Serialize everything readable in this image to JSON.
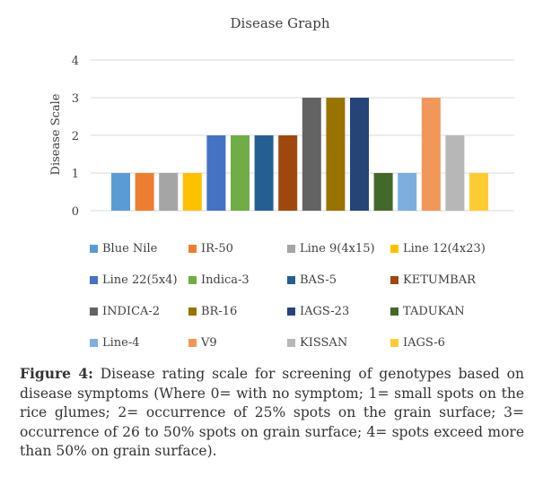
{
  "chart_data": {
    "type": "bar",
    "title": "Disease Graph",
    "xlabel": "",
    "ylabel": "Disease Scale",
    "ylim": [
      0,
      4
    ],
    "yticks": [
      "0",
      "1",
      "2",
      "3",
      "4"
    ],
    "grid": true,
    "legend_position": "bottom",
    "categories": [
      "Blue Nile",
      "IR-50",
      "Line 9(4x15)",
      "Line 12(4x23)",
      "Line 22(5x4)",
      "Indica-3",
      "BAS-5",
      "KETUMBAR",
      "INDICA-2",
      "BR-16",
      "IAGS-23",
      "TADUKAN",
      "Line-4",
      "V9",
      "KISSAN",
      "IAGS-6"
    ],
    "values": [
      1,
      1,
      1,
      1,
      2,
      2,
      2,
      2,
      3,
      3,
      3,
      1,
      1,
      3,
      2,
      1
    ],
    "colors": [
      "#5B9BD5",
      "#ED7D31",
      "#A5A5A5",
      "#FFC000",
      "#4472C4",
      "#70AD47",
      "#255E91",
      "#9E480E",
      "#636363",
      "#997300",
      "#264478",
      "#43682B",
      "#7CAFDD",
      "#F1975A",
      "#B7B7B7",
      "#FFCD33"
    ]
  },
  "caption": {
    "label": "Figure 4:",
    "text": " Disease rating scale for screening of genotypes based on disease symptoms (Where 0= with no symptom; 1= small spots on the rice glumes; 2= occurrence of 25% spots on the grain surface; 3= occurrence of 26 to 50% spots on grain surface; 4= spots exceed more than 50% on grain surface)."
  }
}
